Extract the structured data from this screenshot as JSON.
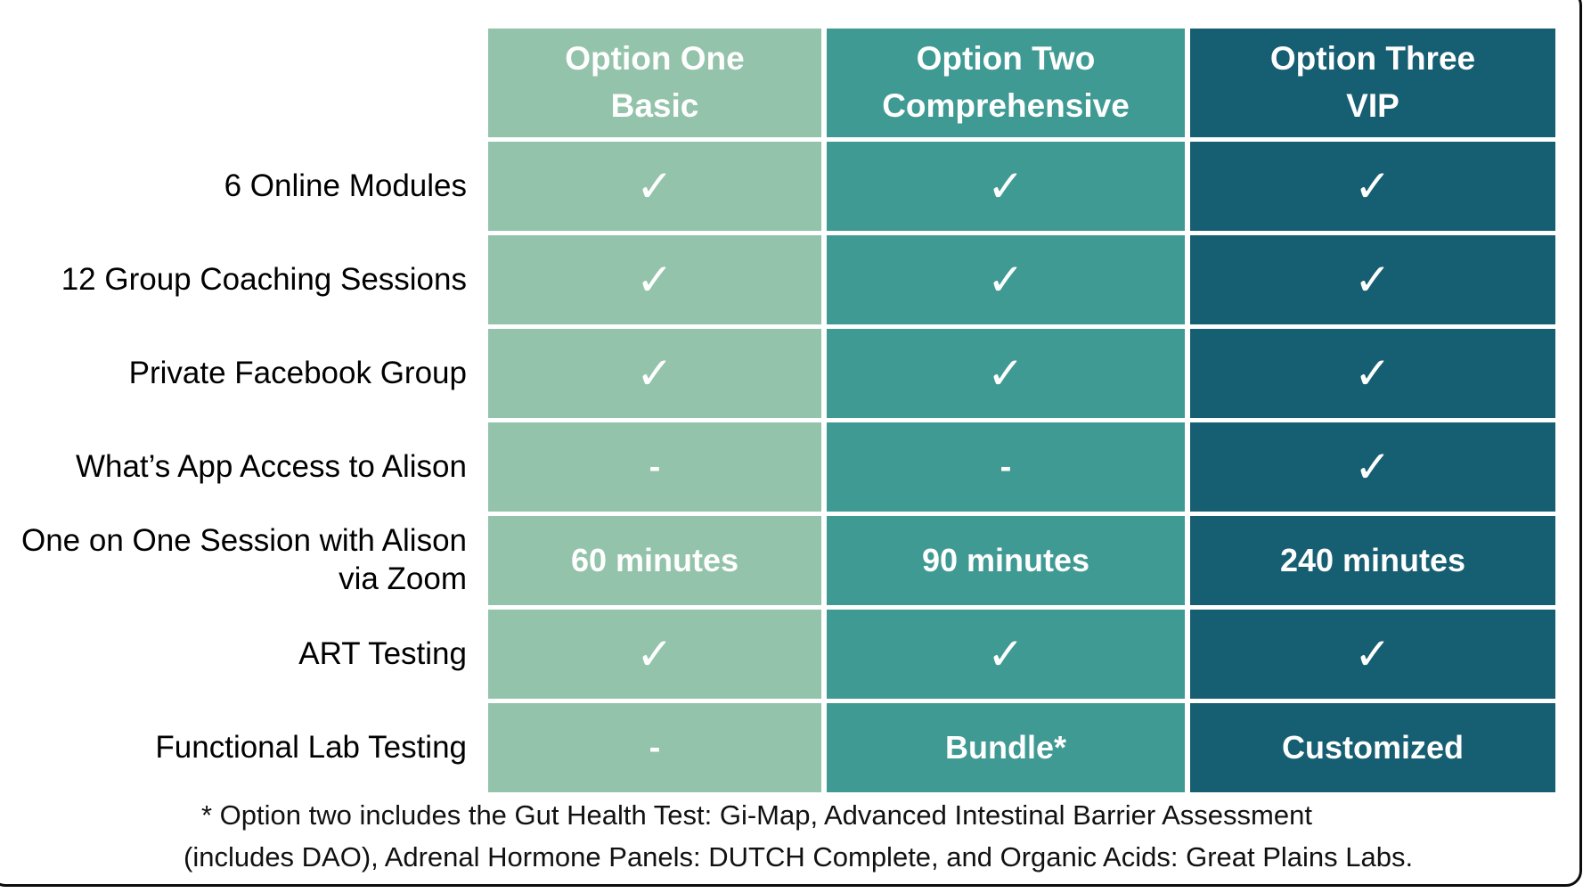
{
  "colors": {
    "col1": "#93c3aa",
    "col2": "#3f9a93",
    "col3": "#165e72",
    "header_text": "#ffffff",
    "label_text": "#000000"
  },
  "table": {
    "columns": [
      {
        "line1": "Option One",
        "line2": "Basic"
      },
      {
        "line1": "Option Two",
        "line2": "Comprehensive"
      },
      {
        "line1": "Option Three",
        "line2": "VIP"
      }
    ],
    "rows": [
      {
        "label": "6 Online Modules",
        "values": [
          "✓",
          "✓",
          "✓"
        ]
      },
      {
        "label": "12 Group Coaching Sessions",
        "values": [
          "✓",
          "✓",
          "✓"
        ]
      },
      {
        "label": "Private Facebook Group",
        "values": [
          "✓",
          "✓",
          "✓"
        ]
      },
      {
        "label": "What’s App Access to Alison",
        "values": [
          "-",
          "-",
          "✓"
        ]
      },
      {
        "label": "One on One Session with Alison via Zoom",
        "values": [
          "60 minutes",
          "90 minutes",
          "240 minutes"
        ]
      },
      {
        "label": "ART Testing",
        "values": [
          "✓",
          "✓",
          "✓"
        ]
      },
      {
        "label": "Functional Lab Testing",
        "values": [
          "-",
          "Bundle*",
          "Customized"
        ]
      }
    ]
  },
  "footnote": {
    "line1": "* Option two includes the Gut Health Test: Gi-Map, Advanced Intestinal Barrier Assessment",
    "line2": "(includes DAO), Adrenal Hormone Panels: DUTCH Complete, and Organic Acids: Great Plains Labs."
  }
}
